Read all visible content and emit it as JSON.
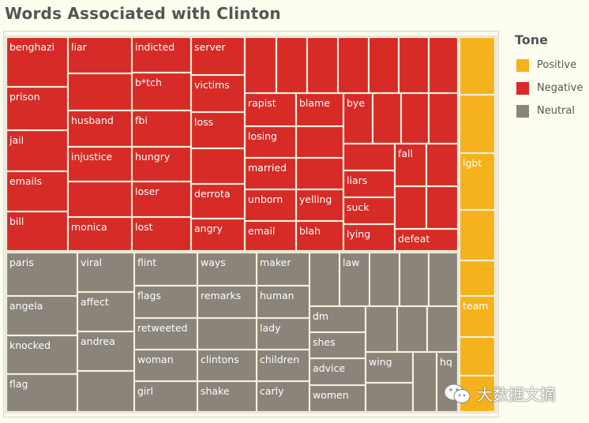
{
  "title": "Words Associated with Clinton",
  "legend": {
    "title": "Tone",
    "items": [
      {
        "label": "Positive",
        "color": "#f5b21c"
      },
      {
        "label": "Negative",
        "color": "#d62b27"
      },
      {
        "label": "Neutral",
        "color": "#8a847b"
      }
    ]
  },
  "watermark": {
    "text": "大数据文摘",
    "icon": "wechat-icon"
  },
  "chart_data": {
    "type": "treemap",
    "title": "Words Associated with Clinton",
    "legend_title": "Tone",
    "groups": [
      {
        "tone": "Negative",
        "color": "#d62b27",
        "words": [
          "benghazi",
          "prison",
          "jail",
          "emails",
          "bill",
          "liar",
          "husband",
          "injustice",
          "monica",
          "indicted",
          "b*tch",
          "fbi",
          "hungry",
          "loser",
          "lost",
          "server",
          "victims",
          "loss",
          "derrota",
          "angry",
          "rapist",
          "blame",
          "bye",
          "losing",
          "married",
          "unborn",
          "yelling",
          "email",
          "blah",
          "liars",
          "suck",
          "lying",
          "fall",
          "defeat"
        ]
      },
      {
        "tone": "Neutral",
        "color": "#8a847b",
        "words": [
          "paris",
          "angela",
          "knocked",
          "flag",
          "viral",
          "affect",
          "andrea",
          "flint",
          "flags",
          "retweeted",
          "woman",
          "girl",
          "ways",
          "remarks",
          "clintons",
          "shake",
          "maker",
          "human",
          "lady",
          "children",
          "carly",
          "law",
          "dm",
          "shes",
          "advice",
          "women",
          "wing",
          "hq"
        ]
      },
      {
        "tone": "Positive",
        "color": "#f5b21c",
        "words": [
          "lgbt",
          "team"
        ]
      }
    ]
  }
}
